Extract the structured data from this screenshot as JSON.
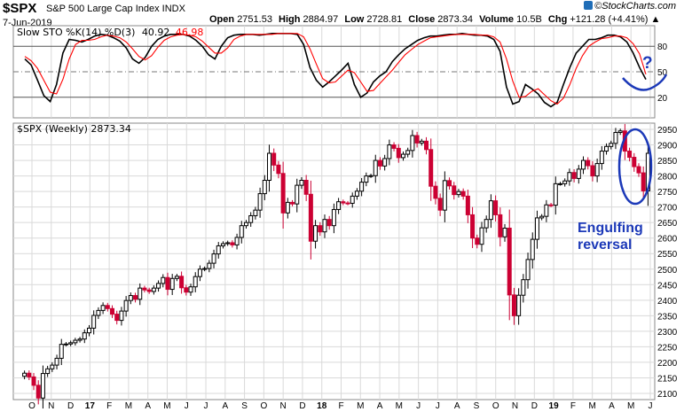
{
  "header": {
    "symbol": "$SPX",
    "description": "S&P 500 Large Cap Index  INDX",
    "date": "7-Jun-2019",
    "open_label": "Open",
    "open": "2751.53",
    "high_label": "High",
    "high": "2884.97",
    "low_label": "Low",
    "low": "2728.81",
    "close_label": "Close",
    "close": "2873.34",
    "volume_label": "Volume",
    "volume": "10.5B",
    "chg_label": "Chg",
    "chg": "+121.28 (+4.41%)",
    "arrow": "▲",
    "brand": "©StockCharts.com"
  },
  "colors": {
    "up": "#000000",
    "down": "#cc0033",
    "ann": "#1c39b8",
    "k": "#000000",
    "d": "#ff0000",
    "grid": "#d9d9d9"
  },
  "chart_data": [
    {
      "type": "line",
      "title": "Slow STO %K(14) %D(3)",
      "legend": {
        "prefix": "Slow STO %K(14) %D(3)",
        "k_value": "40.92",
        "d_value": "46.98"
      },
      "ylim": [
        0,
        100
      ],
      "y_ticks": [
        20,
        50,
        80
      ],
      "series": [
        {
          "name": "%K(14)",
          "color": "#000000",
          "values": [
            65,
            58,
            40,
            22,
            15,
            35,
            72,
            88,
            87,
            85,
            88,
            92,
            94,
            93,
            90,
            86,
            78,
            65,
            60,
            67,
            80,
            88,
            92,
            94,
            94,
            94,
            92,
            87,
            80,
            70,
            65,
            80,
            90,
            93,
            94,
            94,
            94,
            93,
            94,
            95,
            95,
            95,
            95,
            94,
            82,
            55,
            40,
            32,
            38,
            45,
            52,
            60,
            35,
            20,
            25,
            38,
            45,
            50,
            62,
            70,
            77,
            82,
            87,
            90,
            92,
            92,
            93,
            94,
            94,
            95,
            94,
            93,
            93,
            92,
            88,
            74,
            32,
            12,
            15,
            35,
            30,
            24,
            14,
            9,
            14,
            35,
            55,
            72,
            80,
            88,
            88,
            90,
            93,
            93,
            91,
            85,
            72,
            55,
            41
          ]
        },
        {
          "name": "%D(3)",
          "color": "#ff0000",
          "values": [
            68,
            63,
            54,
            40,
            26,
            24,
            41,
            65,
            82,
            87,
            87,
            88,
            91,
            93,
            92,
            90,
            85,
            77,
            68,
            64,
            69,
            79,
            87,
            91,
            93,
            94,
            93,
            91,
            86,
            79,
            72,
            72,
            78,
            88,
            92,
            94,
            94,
            94,
            94,
            94,
            95,
            95,
            95,
            95,
            91,
            77,
            59,
            42,
            37,
            38,
            45,
            52,
            49,
            38,
            27,
            28,
            36,
            44,
            52,
            61,
            70,
            76,
            82,
            86,
            90,
            91,
            92,
            93,
            94,
            94,
            94,
            94,
            93,
            93,
            91,
            85,
            65,
            39,
            20,
            21,
            27,
            30,
            23,
            16,
            12,
            19,
            35,
            54,
            69,
            80,
            85,
            89,
            90,
            92,
            92,
            90,
            83,
            71,
            47
          ]
        }
      ]
    },
    {
      "type": "candlestick",
      "title": "$SPX (Weekly) 2873.34",
      "legend": "$SPX (Weekly) 2873.34",
      "ylim": [
        2080,
        2970
      ],
      "y_ticks": [
        2100,
        2150,
        2200,
        2250,
        2300,
        2350,
        2400,
        2450,
        2500,
        2550,
        2600,
        2650,
        2700,
        2750,
        2800,
        2850,
        2900,
        2950
      ],
      "x_labels": [
        "O",
        "N",
        "D",
        "17",
        "F",
        "M",
        "A",
        "M",
        "J",
        "J",
        "A",
        "S",
        "O",
        "N",
        "D",
        "18",
        "F",
        "M",
        "A",
        "M",
        "J",
        "J",
        "A",
        "S",
        "O",
        "N",
        "D",
        "19",
        "F",
        "M",
        "A",
        "M",
        "J"
      ],
      "close": [
        2165,
        2153,
        2126,
        2085,
        2164,
        2179,
        2191,
        2213,
        2258,
        2259,
        2263,
        2271,
        2275,
        2295,
        2310,
        2351,
        2367,
        2383,
        2373,
        2355,
        2335,
        2365,
        2399,
        2415,
        2403,
        2439,
        2433,
        2428,
        2439,
        2454,
        2473,
        2435,
        2470,
        2477,
        2440,
        2426,
        2443,
        2476,
        2500,
        2502,
        2519,
        2549,
        2575,
        2582,
        2585,
        2578,
        2602,
        2640,
        2650,
        2672,
        2690,
        2743,
        2786,
        2873,
        2835,
        2808,
        2681,
        2715,
        2710,
        2770,
        2786,
        2741,
        2590,
        2640,
        2620,
        2660,
        2640,
        2692,
        2717,
        2713,
        2712,
        2735,
        2751,
        2780,
        2800,
        2801,
        2850,
        2832,
        2856,
        2900,
        2889,
        2859,
        2870,
        2882,
        2930,
        2906,
        2912,
        2885,
        2767,
        2728,
        2690,
        2785,
        2768,
        2740,
        2750,
        2735,
        2675,
        2600,
        2580,
        2633,
        2660,
        2720,
        2675,
        2604,
        2632,
        2417,
        2350,
        2416,
        2466,
        2531,
        2596,
        2665,
        2670,
        2707,
        2706,
        2775,
        2775,
        2784,
        2811,
        2792,
        2822,
        2850,
        2833,
        2800,
        2840,
        2880,
        2895,
        2905,
        2940,
        2945,
        2880,
        2860,
        2830,
        2810,
        2752,
        2873
      ],
      "note": "one weekly candle per close value; open equals previous close"
    }
  ],
  "annotations": {
    "question_mark": "?",
    "engulfing_line1": "Engulfing",
    "engulfing_line2": "reversal"
  }
}
